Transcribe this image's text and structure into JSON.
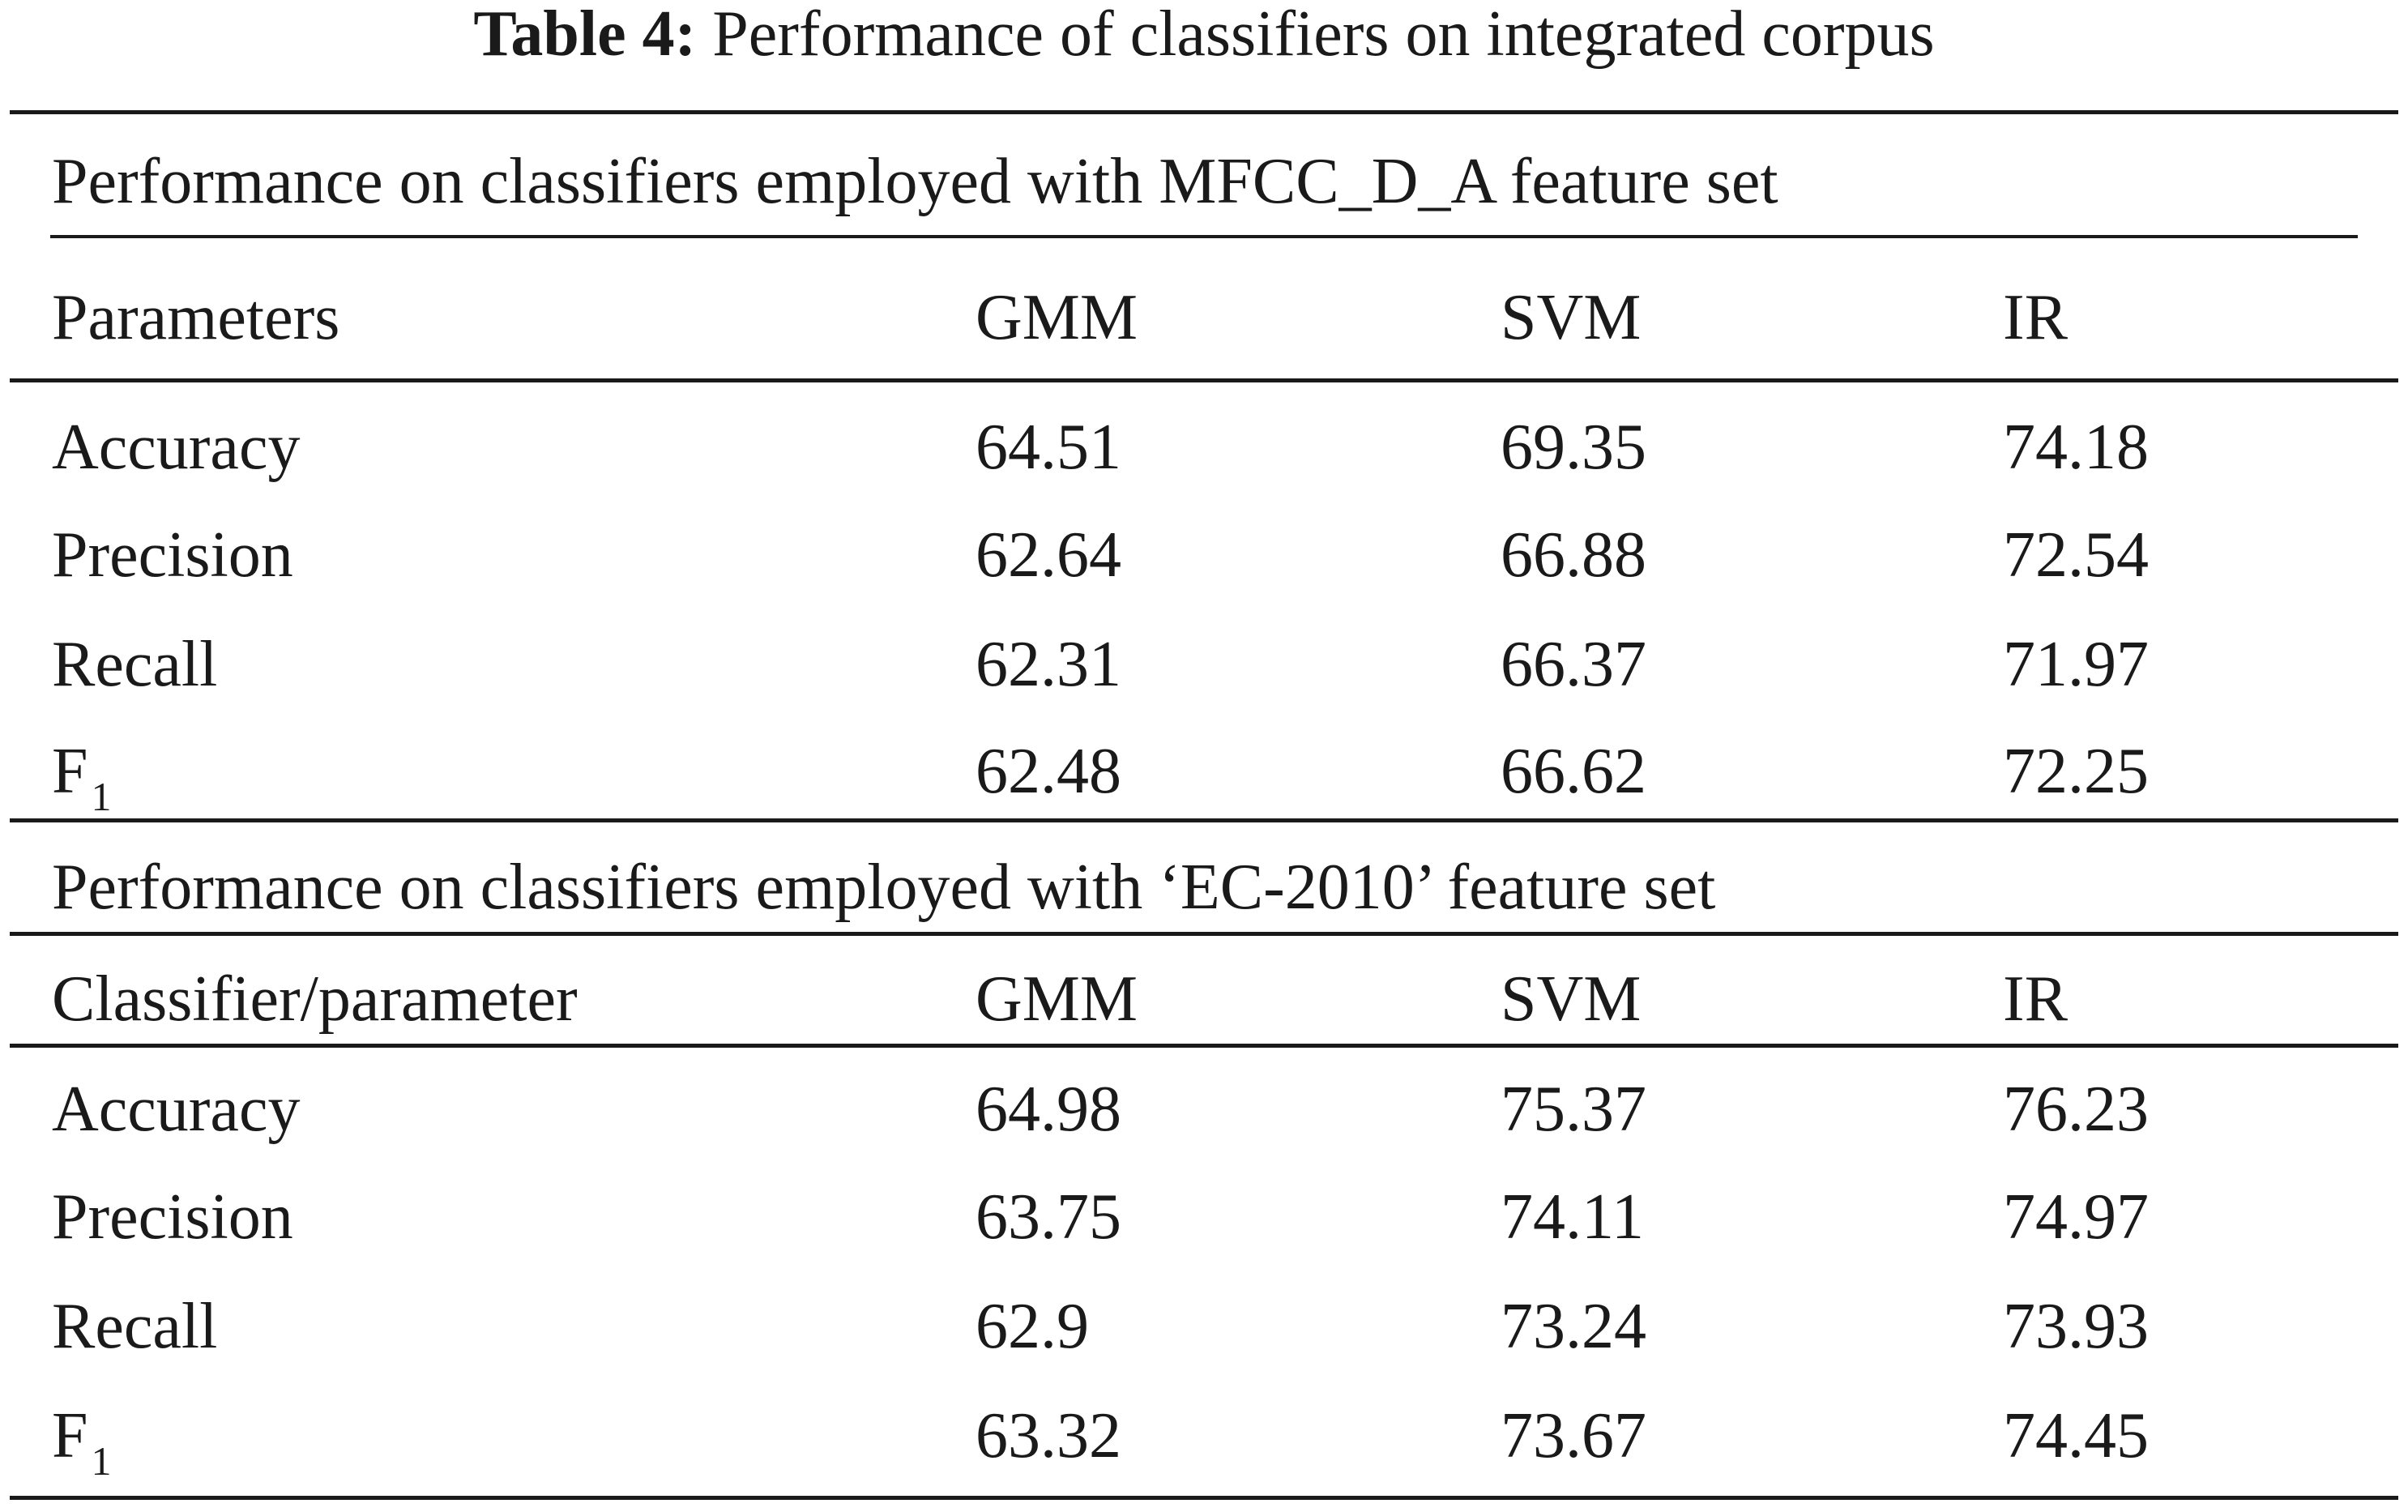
{
  "title": {
    "label": "Table 4:",
    "text": "Performance of classifiers on integrated corpus"
  },
  "sections": [
    {
      "heading": "Performance on classifiers employed with MFCC_D_A feature set",
      "columns": [
        "Parameters",
        "GMM",
        "SVM",
        "IR"
      ],
      "rows": [
        {
          "name": "Accuracy",
          "sub": "",
          "values": [
            "64.51",
            "69.35",
            "74.18"
          ]
        },
        {
          "name": "Precision",
          "sub": "",
          "values": [
            "62.64",
            "66.88",
            "72.54"
          ]
        },
        {
          "name": "Recall",
          "sub": "",
          "values": [
            "62.31",
            "66.37",
            "71.97"
          ]
        },
        {
          "name": "F",
          "sub": "1",
          "values": [
            "62.48",
            "66.62",
            "72.25"
          ]
        }
      ]
    },
    {
      "heading": "Performance on classifiers employed with ‘EC-2010’ feature set",
      "columns": [
        "Classifier/parameter",
        "GMM",
        "SVM",
        "IR"
      ],
      "rows": [
        {
          "name": "Accuracy",
          "sub": "",
          "values": [
            "64.98",
            "75.37",
            "76.23"
          ]
        },
        {
          "name": "Precision",
          "sub": "",
          "values": [
            "63.75",
            "74.11",
            "74.97"
          ]
        },
        {
          "name": "Recall",
          "sub": "",
          "values": [
            "62.9",
            "73.24",
            "73.93"
          ]
        },
        {
          "name": "F",
          "sub": "1",
          "values": [
            "63.32",
            "73.67",
            "74.45"
          ]
        }
      ]
    }
  ]
}
